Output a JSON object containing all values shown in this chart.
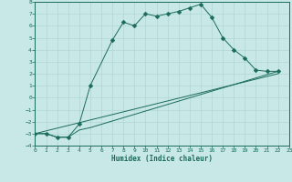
{
  "xlabel": "Humidex (Indice chaleur)",
  "bg_color": "#c8e8e8",
  "grid_color": "#b0d4d4",
  "line_color": "#1a6b5a",
  "xlim": [
    0,
    23
  ],
  "ylim": [
    -4,
    8
  ],
  "xticks": [
    0,
    1,
    2,
    3,
    4,
    5,
    6,
    7,
    8,
    9,
    10,
    11,
    12,
    13,
    14,
    15,
    16,
    17,
    18,
    19,
    20,
    21,
    22,
    23
  ],
  "yticks": [
    -4,
    -3,
    -2,
    -1,
    0,
    1,
    2,
    3,
    4,
    5,
    6,
    7,
    8
  ],
  "line1_x": [
    0,
    1,
    2,
    3,
    4,
    5,
    7,
    8,
    9,
    10,
    11,
    12,
    13,
    14,
    15,
    16,
    17,
    18,
    19,
    20,
    21,
    22
  ],
  "line1_y": [
    -3.0,
    -3.0,
    -3.3,
    -3.3,
    -2.2,
    1.0,
    4.8,
    6.3,
    6.0,
    7.0,
    6.8,
    7.0,
    7.2,
    7.5,
    7.8,
    6.7,
    5.0,
    4.0,
    3.3,
    2.3,
    2.2,
    2.2
  ],
  "line2_x": [
    0,
    1,
    2,
    3,
    4,
    5,
    22
  ],
  "line2_y": [
    -3.0,
    -3.0,
    -3.3,
    -3.3,
    -2.7,
    -2.5,
    2.2
  ],
  "line3_x": [
    0,
    22
  ],
  "line3_y": [
    -3.0,
    2.0
  ],
  "marker_size": 2.5
}
